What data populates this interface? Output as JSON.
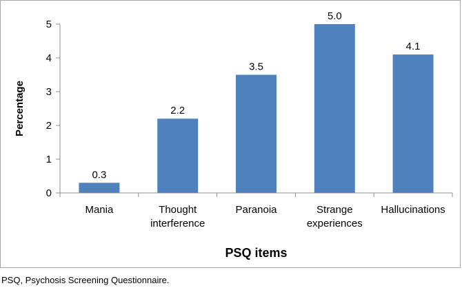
{
  "chart_data": {
    "type": "bar",
    "categories": [
      [
        "Mania"
      ],
      [
        "Thought",
        "interference"
      ],
      [
        "Paranoia"
      ],
      [
        "Strange",
        "experiences"
      ],
      [
        "Hallucinations"
      ]
    ],
    "values": [
      0.3,
      2.2,
      3.5,
      5.0,
      4.1
    ],
    "data_labels": [
      "0.3",
      "2.2",
      "3.5",
      "5.0",
      "4.1"
    ],
    "xlabel": "PSQ items",
    "ylabel": "Percentage",
    "ylim": [
      0,
      5
    ],
    "yticks": [
      0,
      1,
      2,
      3,
      4,
      5
    ],
    "grid": false,
    "legend": "none",
    "bar_color": "#4f81bd"
  },
  "caption": "PSQ, Psychosis Screening Questionnaire."
}
